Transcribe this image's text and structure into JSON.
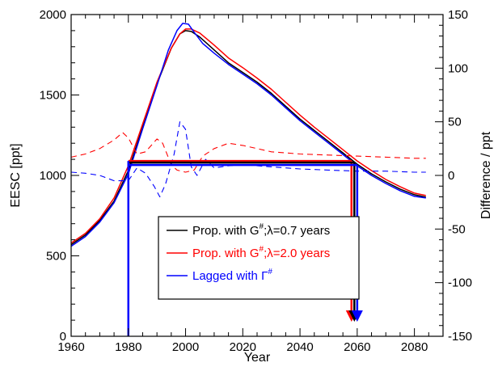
{
  "chart_data": {
    "type": "line",
    "title": "",
    "xlabel": "Year",
    "ylabel": "EESC [ppt]",
    "y2label": "Difference / ppt",
    "xlim": [
      1960,
      2090
    ],
    "ylim": [
      0,
      2000
    ],
    "y2lim": [
      -150,
      150
    ],
    "grid": false,
    "legend_position": "lower-center",
    "x_ticks": [
      1960,
      1980,
      2000,
      2020,
      2040,
      2060,
      2080
    ],
    "y_ticks": [
      0,
      500,
      1000,
      1500,
      2000
    ],
    "y2_ticks": [
      -150,
      -100,
      -50,
      0,
      50,
      100,
      150
    ],
    "series": [
      {
        "name": "Prop. with G#;λ=0.7 years",
        "legend_main": "Prop. with G",
        "legend_sup": "#",
        "legend_rest": ";λ=0.7 years",
        "color": "#000000",
        "axis": "left",
        "style": "solid",
        "x": [
          1960,
          1965,
          1970,
          1975,
          1980,
          1985,
          1990,
          1995,
          1998,
          2000,
          2002,
          2005,
          2010,
          2015,
          2020,
          2025,
          2030,
          2035,
          2040,
          2045,
          2050,
          2055,
          2060,
          2065,
          2070,
          2075,
          2080,
          2084
        ],
        "y": [
          570,
          630,
          720,
          840,
          1030,
          1300,
          1570,
          1790,
          1880,
          1900,
          1895,
          1860,
          1780,
          1700,
          1640,
          1580,
          1510,
          1430,
          1350,
          1280,
          1210,
          1140,
          1070,
          1010,
          960,
          915,
          880,
          865
        ]
      },
      {
        "name": "Prop. with G#;λ=2.0 years",
        "legend_main": "Prop. with G",
        "legend_sup": "#",
        "legend_rest": ";λ=2.0 years",
        "color": "#ff0000",
        "axis": "left",
        "style": "solid",
        "x": [
          1960,
          1965,
          1970,
          1975,
          1980,
          1985,
          1990,
          1995,
          1998,
          2000,
          2002,
          2005,
          2010,
          2015,
          2020,
          2025,
          2030,
          2035,
          2040,
          2045,
          2050,
          2055,
          2060,
          2065,
          2070,
          2075,
          2080,
          2084
        ],
        "y": [
          580,
          640,
          730,
          860,
          1060,
          1320,
          1580,
          1790,
          1880,
          1910,
          1910,
          1885,
          1810,
          1730,
          1670,
          1605,
          1535,
          1455,
          1375,
          1300,
          1230,
          1160,
          1090,
          1030,
          975,
          930,
          890,
          875
        ]
      },
      {
        "name": "Lagged with Γ#",
        "legend_main": "Lagged with Γ",
        "legend_sup": "#",
        "legend_rest": "",
        "color": "#0000ff",
        "axis": "left",
        "style": "solid",
        "x": [
          1960,
          1965,
          1970,
          1975,
          1980,
          1985,
          1990,
          1994,
          1997,
          1999,
          2001,
          2003,
          2006,
          2010,
          2015,
          2020,
          2025,
          2030,
          2035,
          2040,
          2045,
          2050,
          2055,
          2060,
          2065,
          2070,
          2075,
          2080,
          2084
        ],
        "y": [
          560,
          620,
          710,
          830,
          1010,
          1290,
          1560,
          1780,
          1900,
          1945,
          1940,
          1890,
          1820,
          1760,
          1690,
          1630,
          1570,
          1500,
          1420,
          1340,
          1270,
          1200,
          1130,
          1060,
          1000,
          950,
          905,
          870,
          860
        ]
      },
      {
        "name": "Difference (red)",
        "color": "#ff0000",
        "axis": "right",
        "style": "dashed",
        "x": [
          1960,
          1965,
          1970,
          1975,
          1978,
          1980,
          1983,
          1986,
          1990,
          1992,
          1995,
          1997,
          2000,
          2003,
          2006,
          2010,
          2015,
          2020,
          2025,
          2030,
          2040,
          2050,
          2060,
          2070,
          2080,
          2084
        ],
        "y": [
          17,
          20,
          25,
          33,
          40,
          35,
          20,
          22,
          34,
          30,
          10,
          5,
          3,
          5,
          18,
          25,
          30,
          28,
          25,
          22,
          20,
          19,
          18,
          17,
          16,
          16
        ]
      },
      {
        "name": "Difference (blue)",
        "color": "#0000ff",
        "axis": "right",
        "style": "dashed",
        "x": [
          1960,
          1965,
          1970,
          1975,
          1980,
          1983,
          1986,
          1989,
          1991,
          1993,
          1996,
          1998,
          2000,
          2002,
          2004,
          2007,
          2010,
          2015,
          2020,
          2030,
          2040,
          2050,
          2060,
          2070,
          2080,
          2084
        ],
        "y": [
          3,
          2,
          0,
          -5,
          -5,
          7,
          2,
          -10,
          -20,
          -8,
          20,
          50,
          43,
          8,
          0,
          15,
          7,
          9,
          10,
          8,
          6,
          5,
          4,
          4,
          3,
          3
        ]
      }
    ],
    "threshold_lines": [
      {
        "color": "#ff0000",
        "value": 1090,
        "x_start": 1980,
        "x_end": 2058,
        "arrow_x": 2058
      },
      {
        "color": "#000000",
        "value": 1080,
        "x_start": 1980,
        "x_end": 2059,
        "arrow_x": 2059
      },
      {
        "color": "#0000ff",
        "value": 1065,
        "x_start": 1980,
        "x_end": 2060,
        "arrow_x": 2060
      }
    ],
    "vertical_drop": {
      "x": 1980,
      "color": "#0000ff"
    }
  }
}
